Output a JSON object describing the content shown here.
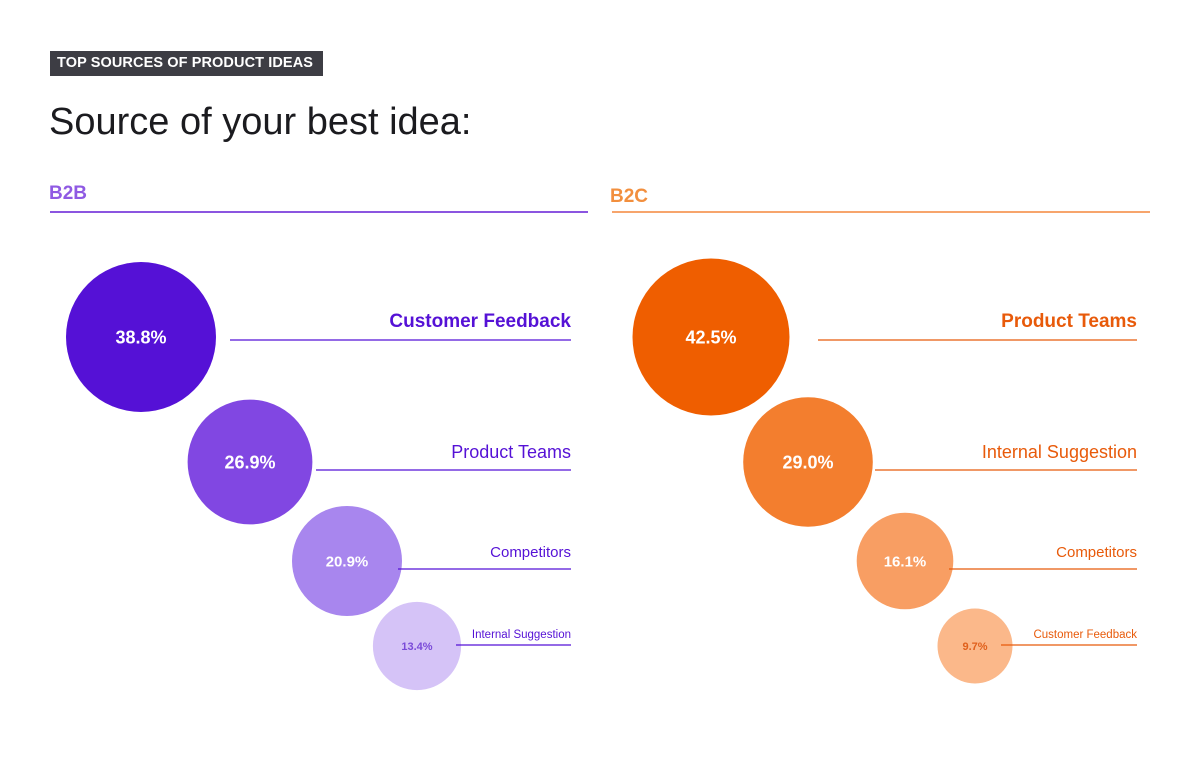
{
  "header": {
    "tag": "TOP SOURCES OF PRODUCT IDEAS",
    "title": "Source of your best idea:"
  },
  "chart_data": [
    {
      "type": "bubble",
      "panel": "B2B",
      "color": "#8b55e0",
      "title_color": "#8f5ae3",
      "categories": [
        "Customer Feedback",
        "Product Teams",
        "Competitors",
        "Internal Suggestion"
      ],
      "values": [
        38.8,
        26.9,
        20.9,
        13.4
      ],
      "value_labels": [
        "38.8%",
        "26.9%",
        "20.9%",
        "13.4%"
      ],
      "bubble_colors": [
        "#5511d6",
        "#8147e2",
        "#a886ee",
        "#d5c3f7"
      ],
      "label_colors": [
        "#5511d6",
        "#5511d6",
        "#5511d6",
        "#5511d6"
      ],
      "value_label_colors": [
        "#ffffff",
        "#ffffff",
        "#ffffff",
        "#7a4ad8"
      ]
    },
    {
      "type": "bubble",
      "panel": "B2C",
      "color": "#f7a56c",
      "title_color": "#f28f3e",
      "categories": [
        "Product Teams",
        "Internal Suggestion",
        "Competitors",
        "Customer Feedback"
      ],
      "values": [
        42.5,
        29.0,
        16.1,
        9.7
      ],
      "value_labels": [
        "42.5%",
        "29.0%",
        "16.1%",
        "9.7%"
      ],
      "bubble_colors": [
        "#ef5e00",
        "#f37e2e",
        "#f89e63",
        "#fbb88a"
      ],
      "label_colors": [
        "#e85a0a",
        "#e85a0a",
        "#e85a0a",
        "#e85a0a"
      ],
      "value_label_colors": [
        "#ffffff",
        "#ffffff",
        "#ffffff",
        "#e0601c"
      ]
    }
  ]
}
